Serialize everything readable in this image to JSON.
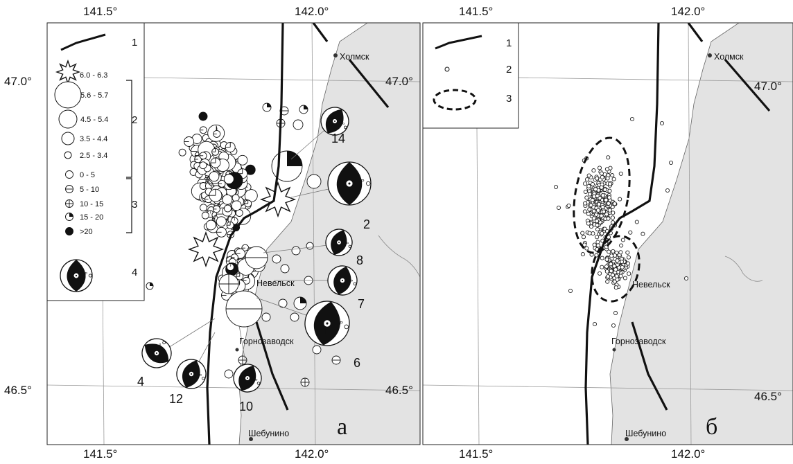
{
  "panels": [
    {
      "id": "a",
      "letter": "а",
      "top_ticks": [
        "141.5°",
        "142.0°"
      ],
      "bottom_ticks": [
        "141.5°",
        "142.0°"
      ],
      "left_ticks": [
        "47.0°",
        "46.5°"
      ],
      "right_ticks": [],
      "towns": [
        "Холмск",
        "Невельск",
        "Горнозаводск",
        "Шебунино"
      ],
      "legend": {
        "items": [
          {
            "num": "1",
            "sym": "fault"
          },
          {
            "num": "",
            "sym": "star",
            "label": "6.0 - 6.3"
          },
          {
            "num": "",
            "sym": "circle",
            "r": 19,
            "label": "5.6 - 5.7"
          },
          {
            "num": "2",
            "sym": "circle",
            "r": 13,
            "label": "4.5 - 5.4"
          },
          {
            "num": "",
            "sym": "circle",
            "r": 9,
            "label": "3.5 - 4.4"
          },
          {
            "num": "",
            "sym": "circle",
            "r": 5,
            "label": "2.5 - 3.4"
          },
          {
            "num": "",
            "sym": "d0",
            "label": "0 - 5"
          },
          {
            "num": "",
            "sym": "d1",
            "label": "5 - 10"
          },
          {
            "num": "3",
            "sym": "d2",
            "label": "10 - 15"
          },
          {
            "num": "",
            "sym": "d3",
            "label": "15 - 20"
          },
          {
            "num": "",
            "sym": "d4",
            "label": ">20"
          },
          {
            "num": "4",
            "sym": "beach"
          }
        ]
      },
      "mechanisms": [
        "14",
        "2",
        "8",
        "7",
        "6",
        "4",
        "12",
        "10"
      ]
    },
    {
      "id": "b",
      "letter": "б",
      "top_ticks": [
        "141.5°",
        "142.0°"
      ],
      "bottom_ticks": [
        "141.5°",
        "142.0°"
      ],
      "left_ticks": [],
      "right_ticks": [
        "47.0°",
        "46.5°"
      ],
      "towns": [
        "Холмск",
        "Невельск",
        "Горнозаводск",
        "Шебунино"
      ],
      "legend": {
        "items": [
          {
            "num": "1",
            "sym": "fault"
          },
          {
            "num": "2",
            "sym": "dot"
          },
          {
            "num": "3",
            "sym": "ellipse"
          }
        ]
      }
    }
  ],
  "beach_labels": {
    "p": "P",
    "t": "T"
  },
  "colors": {
    "land": "#e3e3e3",
    "ink": "#111111",
    "grid": "#9a9a9a",
    "sea": "#ffffff"
  }
}
